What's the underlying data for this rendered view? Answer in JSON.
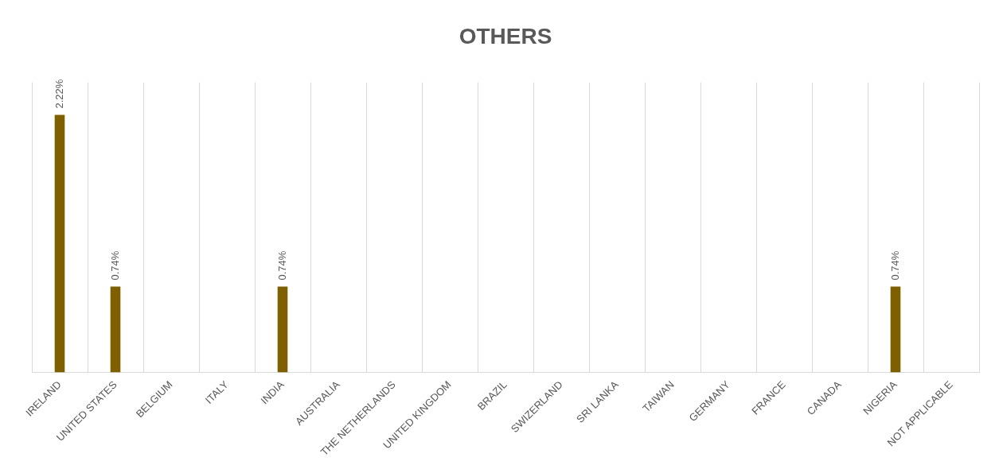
{
  "chart_data": {
    "type": "bar",
    "title": "OTHERS",
    "categories": [
      "IRELAND",
      "UNITED STATES",
      "BELGIUM",
      "ITALY",
      "INDIA",
      "AUSTRALIA",
      "THE NETHERLANDS",
      "UNITED KINGDOM",
      "BRAZIL",
      "SWIZERLAND",
      "SRI LANKA",
      "TAIWAN",
      "GERMANY",
      "FRANCE",
      "CANADA",
      "NIGERIA",
      "NOT APPLICABLE"
    ],
    "values": [
      2.22,
      0.74,
      0,
      0,
      0.74,
      0,
      0,
      0,
      0,
      0,
      0,
      0,
      0,
      0,
      0,
      0.74,
      0
    ],
    "value_labels": [
      "2.22%",
      "0.74%",
      null,
      null,
      "0.74%",
      null,
      null,
      null,
      null,
      null,
      null,
      null,
      null,
      null,
      null,
      "0.74%",
      null
    ],
    "color": "#7f6000",
    "ylim": [
      0,
      2.5
    ],
    "tick_labels": "x",
    "grid": "x",
    "legend": false
  }
}
